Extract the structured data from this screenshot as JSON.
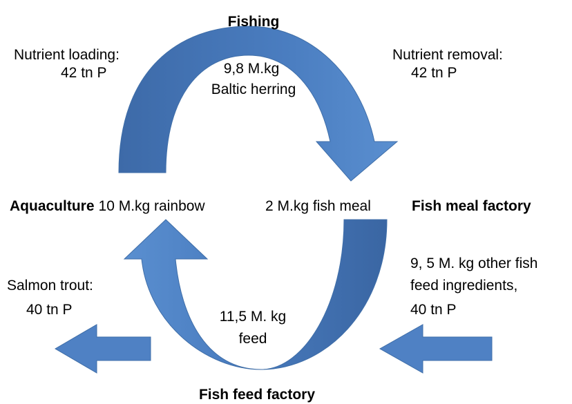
{
  "cycle": {
    "fishing": {
      "label": "Fishing",
      "amount": [
        "9,8 M.kg",
        "Baltic herring"
      ]
    },
    "nutrient_loading": [
      "Nutrient loading:",
      "42  tn P"
    ],
    "nutrient_removal": [
      "Nutrient removal:",
      "42 tn P"
    ],
    "aquaculture": {
      "label": "Aquaculture",
      "amount": "10 M.kg rainbow"
    },
    "fish_meal_factory": {
      "label": "Fish meal factory",
      "amount": "2 M.kg fish meal"
    },
    "fish_feed_factory": {
      "label": "Fish feed factory",
      "amount": [
        "11,5 M. kg",
        "feed"
      ]
    },
    "salmon_trout": [
      "Salmon trout:",
      "40  tn P"
    ],
    "other_ingredients": [
      "9, 5 M. kg other fish",
      "feed ingredients,",
      "40 tn P"
    ]
  }
}
